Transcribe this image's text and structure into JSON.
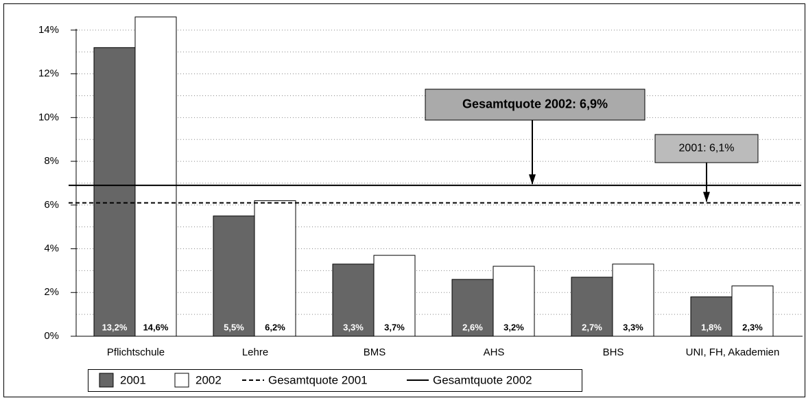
{
  "chart_data": {
    "type": "bar",
    "categories": [
      "Pflichtschule",
      "Lehre",
      "BMS",
      "AHS",
      "BHS",
      "UNI, FH, Akademien"
    ],
    "series": [
      {
        "name": "2001",
        "color": "#666666",
        "values": [
          13.2,
          5.5,
          3.3,
          2.6,
          2.7,
          1.8
        ],
        "value_labels": [
          "13,2%",
          "5,5%",
          "3,3%",
          "2,6%",
          "2,7%",
          "1,8%"
        ]
      },
      {
        "name": "2002",
        "color": "#ffffff",
        "values": [
          14.6,
          6.2,
          3.7,
          3.2,
          3.3,
          2.3
        ],
        "value_labels": [
          "14,6%",
          "6,2%",
          "3,7%",
          "3,2%",
          "3,3%",
          "2,3%"
        ]
      }
    ],
    "reference_lines": [
      {
        "name": "Gesamtquote 2001",
        "value": 6.1,
        "style": "dashed",
        "annotation": "2001: 6,1%"
      },
      {
        "name": "Gesamtquote 2002",
        "value": 6.9,
        "style": "solid",
        "annotation": "Gesamtquote 2002: 6,9%"
      }
    ],
    "ylim": [
      0,
      15
    ],
    "yticks": [
      {
        "value": 0,
        "label": "0%"
      },
      {
        "value": 2,
        "label": "2%"
      },
      {
        "value": 4,
        "label": "4%"
      },
      {
        "value": 6,
        "label": "6%"
      },
      {
        "value": 8,
        "label": "8%"
      },
      {
        "value": 10,
        "label": "10%"
      },
      {
        "value": 12,
        "label": "12%"
      },
      {
        "value": 14,
        "label": "14%"
      }
    ],
    "minor_yticks": [
      1,
      3,
      5,
      7,
      9,
      11,
      13
    ],
    "grid": true
  }
}
